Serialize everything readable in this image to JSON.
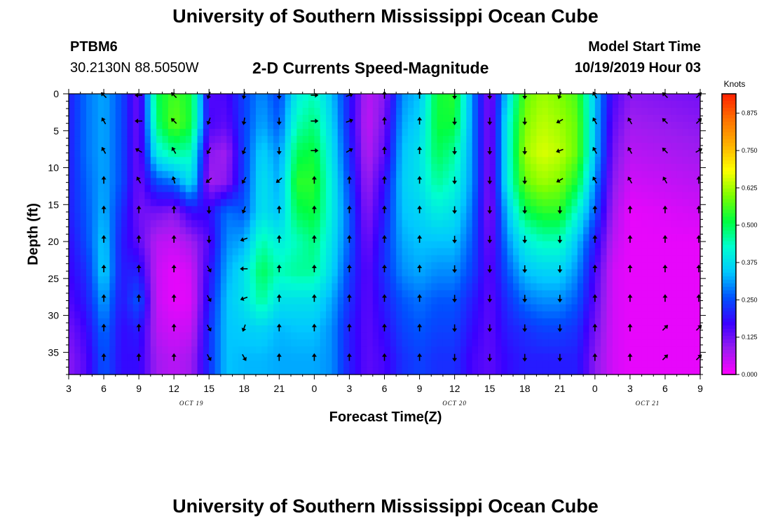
{
  "header": {
    "title_top": "University of Southern Mississippi Ocean Cube",
    "title_bottom": "University of Southern Mississippi Ocean Cube",
    "station_id": "PTBM6",
    "station_coords": "30.2130N 88.5050W",
    "subtitle": "2-D Currents Speed-Magnitude",
    "model_label": "Model Start Time",
    "model_time": "10/19/2019 Hour 03"
  },
  "colors": {
    "scale": [
      "#ff00ff",
      "#9a1cf0",
      "#3a00ff",
      "#0050ff",
      "#00c8ff",
      "#00ffd0",
      "#00ff40",
      "#7cff00",
      "#ffff00",
      "#ffb000",
      "#ff7000",
      "#ff2000"
    ],
    "arrow": "#000000",
    "frame": "#000000"
  },
  "chart_data": {
    "type": "heatmap",
    "title": "2-D Currents Speed-Magnitude",
    "xlabel": "Forecast Time(Z)",
    "ylabel": "Depth (ft)",
    "x_tick_labels": [
      "3",
      "6",
      "9",
      "12",
      "15",
      "18",
      "21",
      "0",
      "3",
      "6",
      "9",
      "12",
      "15",
      "18",
      "21",
      "0",
      "3",
      "6",
      "9"
    ],
    "x_hours": [
      0,
      3,
      6,
      9,
      12,
      15,
      18,
      21,
      24,
      27,
      30,
      33,
      36,
      39,
      42,
      45,
      48,
      51,
      54
    ],
    "date_labels": [
      {
        "label": "OCT 19",
        "hour": 10.5
      },
      {
        "label": "OCT 20",
        "hour": 33
      },
      {
        "label": "OCT 21",
        "hour": 49.5
      }
    ],
    "y_tick_labels": [
      "0",
      "5",
      "10",
      "15",
      "20",
      "25",
      "30",
      "35"
    ],
    "y_ticks": [
      0,
      5,
      10,
      15,
      20,
      25,
      30,
      35
    ],
    "ylim": [
      0,
      38
    ],
    "xlim": [
      0,
      54
    ],
    "colorbar": {
      "unit": "Knots",
      "tick_labels": [
        "0.000",
        "0.125",
        "0.250",
        "0.375",
        "0.500",
        "0.625",
        "0.750",
        "0.875"
      ],
      "ticks": [
        0,
        0.125,
        0.25,
        0.375,
        0.5,
        0.625,
        0.75,
        0.875
      ],
      "range": [
        0,
        0.94
      ]
    },
    "profile_depths": [
      0,
      4,
      8,
      12,
      16,
      20,
      24,
      28,
      32,
      36,
      38
    ],
    "speed_profiles": [
      {
        "hour": 0,
        "speeds": [
          0.2,
          0.2,
          0.2,
          0.2,
          0.2,
          0.18,
          0.17,
          0.15,
          0.12,
          0.1,
          0.1
        ]
      },
      {
        "hour": 1.5,
        "speeds": [
          0.28,
          0.28,
          0.28,
          0.27,
          0.26,
          0.25,
          0.22,
          0.2,
          0.17,
          0.15,
          0.15
        ]
      },
      {
        "hour": 3,
        "speeds": [
          0.32,
          0.32,
          0.32,
          0.32,
          0.33,
          0.35,
          0.36,
          0.32,
          0.28,
          0.26,
          0.26
        ]
      },
      {
        "hour": 4.5,
        "speeds": [
          0.25,
          0.25,
          0.25,
          0.25,
          0.22,
          0.2,
          0.2,
          0.19,
          0.18,
          0.18,
          0.18
        ]
      },
      {
        "hour": 6,
        "speeds": [
          0.12,
          0.12,
          0.12,
          0.12,
          0.12,
          0.14,
          0.2,
          0.26,
          0.2,
          0.18,
          0.18
        ]
      },
      {
        "hour": 7.5,
        "speeds": [
          0.5,
          0.48,
          0.4,
          0.25,
          0.12,
          0.06,
          0.05,
          0.05,
          0.06,
          0.08,
          0.08
        ]
      },
      {
        "hour": 9,
        "speeds": [
          0.56,
          0.58,
          0.46,
          0.28,
          0.1,
          0.05,
          0.02,
          0.02,
          0.04,
          0.06,
          0.06
        ]
      },
      {
        "hour": 10.5,
        "speeds": [
          0.52,
          0.52,
          0.44,
          0.38,
          0.18,
          0.08,
          0.04,
          0.03,
          0.05,
          0.08,
          0.08
        ]
      },
      {
        "hour": 12,
        "speeds": [
          0.15,
          0.16,
          0.1,
          0.08,
          0.18,
          0.15,
          0.18,
          0.2,
          0.22,
          0.22,
          0.22
        ]
      },
      {
        "hour": 13.5,
        "speeds": [
          0.16,
          0.14,
          0.08,
          0.1,
          0.28,
          0.3,
          0.32,
          0.34,
          0.34,
          0.34,
          0.34
        ]
      },
      {
        "hour": 15,
        "speeds": [
          0.24,
          0.24,
          0.24,
          0.24,
          0.26,
          0.32,
          0.38,
          0.38,
          0.35,
          0.33,
          0.33
        ]
      },
      {
        "hour": 16.5,
        "speeds": [
          0.3,
          0.32,
          0.36,
          0.38,
          0.38,
          0.45,
          0.5,
          0.46,
          0.36,
          0.33,
          0.33
        ]
      },
      {
        "hour": 18,
        "speeds": [
          0.24,
          0.26,
          0.3,
          0.32,
          0.34,
          0.4,
          0.44,
          0.38,
          0.33,
          0.32,
          0.32
        ]
      },
      {
        "hour": 19.5,
        "speeds": [
          0.4,
          0.44,
          0.5,
          0.54,
          0.5,
          0.44,
          0.46,
          0.38,
          0.34,
          0.32,
          0.32
        ]
      },
      {
        "hour": 21,
        "speeds": [
          0.44,
          0.48,
          0.52,
          0.54,
          0.52,
          0.48,
          0.46,
          0.38,
          0.34,
          0.32,
          0.32
        ]
      },
      {
        "hour": 22.5,
        "speeds": [
          0.34,
          0.36,
          0.38,
          0.4,
          0.4,
          0.38,
          0.36,
          0.32,
          0.3,
          0.3,
          0.3
        ]
      },
      {
        "hour": 24,
        "speeds": [
          0.2,
          0.2,
          0.22,
          0.24,
          0.26,
          0.26,
          0.24,
          0.22,
          0.2,
          0.2,
          0.2
        ]
      },
      {
        "hour": 25.5,
        "speeds": [
          0.06,
          0.05,
          0.06,
          0.08,
          0.1,
          0.12,
          0.14,
          0.14,
          0.14,
          0.14,
          0.14
        ]
      },
      {
        "hour": 27,
        "speeds": [
          0.1,
          0.12,
          0.14,
          0.18,
          0.2,
          0.22,
          0.22,
          0.2,
          0.18,
          0.16,
          0.16
        ]
      },
      {
        "hour": 28.5,
        "speeds": [
          0.3,
          0.32,
          0.34,
          0.35,
          0.34,
          0.32,
          0.3,
          0.26,
          0.24,
          0.22,
          0.22
        ]
      },
      {
        "hour": 30,
        "speeds": [
          0.34,
          0.36,
          0.38,
          0.38,
          0.36,
          0.34,
          0.32,
          0.28,
          0.26,
          0.24,
          0.24
        ]
      },
      {
        "hour": 31.5,
        "speeds": [
          0.52,
          0.52,
          0.5,
          0.46,
          0.4,
          0.34,
          0.3,
          0.26,
          0.24,
          0.22,
          0.22
        ]
      },
      {
        "hour": 33,
        "speeds": [
          0.54,
          0.52,
          0.46,
          0.42,
          0.38,
          0.34,
          0.3,
          0.26,
          0.24,
          0.22,
          0.22
        ]
      },
      {
        "hour": 34.5,
        "speeds": [
          0.3,
          0.3,
          0.3,
          0.3,
          0.28,
          0.26,
          0.24,
          0.2,
          0.18,
          0.16,
          0.16
        ]
      },
      {
        "hour": 36,
        "speeds": [
          0.1,
          0.1,
          0.1,
          0.1,
          0.1,
          0.12,
          0.14,
          0.14,
          0.14,
          0.14,
          0.14
        ]
      },
      {
        "hour": 37.5,
        "speeds": [
          0.36,
          0.4,
          0.4,
          0.4,
          0.34,
          0.3,
          0.26,
          0.22,
          0.2,
          0.18,
          0.18
        ]
      },
      {
        "hour": 39,
        "speeds": [
          0.58,
          0.6,
          0.62,
          0.58,
          0.5,
          0.4,
          0.34,
          0.28,
          0.22,
          0.2,
          0.2
        ]
      },
      {
        "hour": 40.5,
        "speeds": [
          0.62,
          0.64,
          0.66,
          0.62,
          0.54,
          0.44,
          0.36,
          0.3,
          0.24,
          0.2,
          0.2
        ]
      },
      {
        "hour": 42,
        "speeds": [
          0.6,
          0.62,
          0.64,
          0.6,
          0.54,
          0.44,
          0.36,
          0.3,
          0.24,
          0.2,
          0.2
        ]
      },
      {
        "hour": 43.5,
        "speeds": [
          0.56,
          0.58,
          0.58,
          0.52,
          0.42,
          0.34,
          0.3,
          0.26,
          0.22,
          0.2,
          0.2
        ]
      },
      {
        "hour": 45,
        "speeds": [
          0.34,
          0.34,
          0.34,
          0.3,
          0.26,
          0.2,
          0.16,
          0.14,
          0.12,
          0.1,
          0.1
        ]
      },
      {
        "hour": 46.5,
        "speeds": [
          0.16,
          0.14,
          0.12,
          0.1,
          0.08,
          0.06,
          0.04,
          0.04,
          0.04,
          0.04,
          0.04
        ]
      },
      {
        "hour": 48,
        "speeds": [
          0.1,
          0.08,
          0.06,
          0.04,
          0.02,
          0.02,
          0.02,
          0.02,
          0.02,
          0.02,
          0.02
        ]
      },
      {
        "hour": 54,
        "speeds": [
          0.12,
          0.1,
          0.08,
          0.06,
          0.04,
          0.02,
          0.02,
          0.02,
          0.02,
          0.02,
          0.02
        ]
      }
    ],
    "vector_depths": [
      0,
      3.5,
      7.5,
      11.5,
      15.5,
      19.5,
      23.5,
      27.5,
      31.5,
      35.5
    ],
    "vector_hours": [
      3,
      6,
      9,
      12,
      15,
      18,
      21,
      24,
      27,
      30,
      33,
      36,
      39,
      42,
      45,
      48,
      51,
      54
    ],
    "vector_directions_deg": [
      [
        315,
        330,
        330,
        0,
        0,
        0,
        0,
        0,
        0,
        0
      ],
      [
        270,
        270,
        300,
        330,
        0,
        0,
        0,
        0,
        0,
        0
      ],
      [
        315,
        315,
        330,
        345,
        0,
        0,
        0,
        0,
        0,
        0
      ],
      [
        200,
        200,
        210,
        230,
        180,
        180,
        150,
        150,
        150,
        150
      ],
      [
        190,
        190,
        200,
        210,
        200,
        250,
        270,
        250,
        200,
        150
      ],
      [
        180,
        180,
        180,
        230,
        0,
        0,
        0,
        0,
        0,
        0
      ],
      [
        90,
        90,
        90,
        0,
        0,
        0,
        0,
        0,
        0,
        0
      ],
      [
        70,
        70,
        60,
        0,
        0,
        0,
        0,
        0,
        0,
        0
      ],
      [
        0,
        0,
        0,
        0,
        0,
        0,
        0,
        0,
        0,
        0
      ],
      [
        0,
        0,
        0,
        0,
        0,
        0,
        0,
        0,
        0,
        0
      ],
      [
        180,
        180,
        180,
        180,
        180,
        180,
        180,
        180,
        180,
        180
      ],
      [
        180,
        180,
        180,
        180,
        180,
        180,
        180,
        180,
        180,
        180
      ],
      [
        180,
        180,
        180,
        180,
        180,
        180,
        180,
        180,
        180,
        180
      ],
      [
        200,
        240,
        250,
        240,
        180,
        180,
        180,
        180,
        180,
        180
      ],
      [
        330,
        330,
        330,
        330,
        0,
        0,
        0,
        0,
        0,
        0
      ],
      [
        330,
        330,
        330,
        330,
        0,
        0,
        0,
        0,
        0,
        0
      ],
      [
        315,
        315,
        315,
        330,
        0,
        0,
        0,
        0,
        45,
        45
      ],
      [
        45,
        45,
        60,
        0,
        0,
        0,
        0,
        0,
        45,
        45
      ]
    ]
  }
}
